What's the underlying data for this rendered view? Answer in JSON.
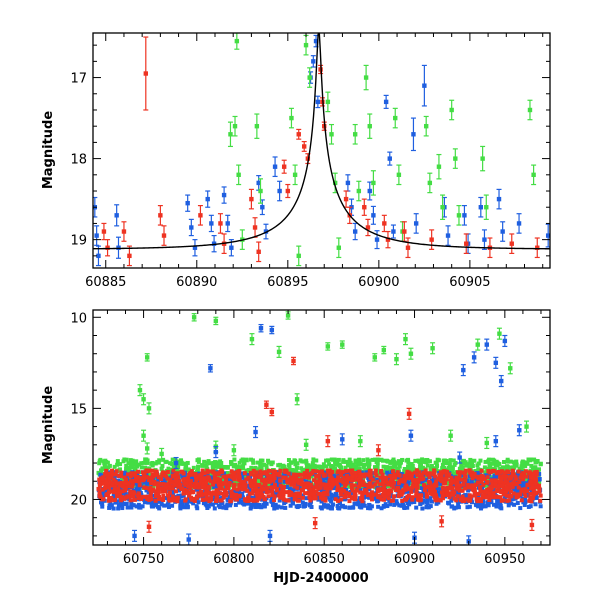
{
  "colors": {
    "blue": "#1f5fe0",
    "green": "#44dd44",
    "red": "#ee3322",
    "model": "#000000"
  },
  "chart_data": [
    {
      "type": "scatter",
      "panel": "zoom",
      "title": "",
      "xlabel": "",
      "ylabel": "Magnitude",
      "xlim": [
        60884.3,
        60909.4
      ],
      "ylim": [
        19.35,
        16.45
      ],
      "y_inverted": true,
      "x_ticks": [
        60885,
        60890,
        60895,
        60900,
        60905
      ],
      "x_tick_labels": [
        "60885",
        "60890",
        "60895",
        "60900",
        "60905"
      ],
      "y_ticks": [
        17,
        18,
        19
      ],
      "y_tick_labels": [
        "17",
        "18",
        "19"
      ],
      "model_curve": {
        "color": "#000000",
        "peak_x": 60896.7,
        "peak_mag": 16.4,
        "baseline_mag": 19.12,
        "u0": 0.02,
        "tE": 5.0
      },
      "series": [
        {
          "color_key": "blue",
          "points": [
            [
              60884.4,
              18.6,
              0.12
            ],
            [
              60884.5,
              18.95,
              0.12
            ],
            [
              60884.6,
              19.2,
              0.12
            ],
            [
              60885.6,
              18.7,
              0.13
            ],
            [
              60885.7,
              19.1,
              0.13
            ],
            [
              60889.5,
              18.55,
              0.1
            ],
            [
              60889.7,
              18.85,
              0.1
            ],
            [
              60889.9,
              19.1,
              0.1
            ],
            [
              60890.6,
              18.5,
              0.1
            ],
            [
              60890.8,
              18.8,
              0.1
            ],
            [
              60890.95,
              19.05,
              0.1
            ],
            [
              60891.5,
              18.45,
              0.1
            ],
            [
              60891.7,
              18.8,
              0.1
            ],
            [
              60891.9,
              19.1,
              0.1
            ],
            [
              60893.4,
              18.3,
              0.09
            ],
            [
              60893.6,
              18.6,
              0.09
            ],
            [
              60893.8,
              18.9,
              0.09
            ],
            [
              60894.3,
              18.1,
              0.12
            ],
            [
              60894.55,
              18.4,
              0.12
            ],
            [
              60896.25,
              17.0,
              0.07
            ],
            [
              60896.4,
              16.8,
              0.07
            ],
            [
              60896.55,
              16.55,
              0.07
            ],
            [
              60896.65,
              17.3,
              0.07
            ],
            [
              60898.3,
              18.3,
              0.1
            ],
            [
              60898.5,
              18.6,
              0.1
            ],
            [
              60898.7,
              18.9,
              0.1
            ],
            [
              60899.5,
              18.4,
              0.11
            ],
            [
              60899.7,
              18.7,
              0.11
            ],
            [
              60899.9,
              19.0,
              0.11
            ],
            [
              60900.4,
              17.3,
              0.08
            ],
            [
              60900.6,
              18.0,
              0.08
            ],
            [
              60900.8,
              18.9,
              0.08
            ],
            [
              60901.9,
              17.7,
              0.2
            ],
            [
              60902.05,
              18.8,
              0.12
            ],
            [
              60902.5,
              17.1,
              0.25
            ],
            [
              60903.6,
              18.6,
              0.12
            ],
            [
              60903.8,
              18.95,
              0.12
            ],
            [
              60904.7,
              18.7,
              0.12
            ],
            [
              60904.9,
              19.05,
              0.12
            ],
            [
              60905.6,
              18.6,
              0.12
            ],
            [
              60905.8,
              19.0,
              0.12
            ],
            [
              60906.6,
              18.5,
              0.12
            ],
            [
              60906.8,
              18.9,
              0.12
            ],
            [
              60907.7,
              18.8,
              0.12
            ],
            [
              60909.3,
              18.95,
              0.14
            ]
          ]
        },
        {
          "color_key": "green",
          "points": [
            [
              60891.85,
              17.7,
              0.15
            ],
            [
              60892.2,
              16.55,
              0.1
            ],
            [
              60892.1,
              17.6,
              0.12
            ],
            [
              60892.3,
              18.2,
              0.12
            ],
            [
              60892.5,
              19.0,
              0.12
            ],
            [
              60893.3,
              17.6,
              0.15
            ],
            [
              60893.5,
              18.4,
              0.15
            ],
            [
              60895.2,
              17.5,
              0.12
            ],
            [
              60895.4,
              18.2,
              0.12
            ],
            [
              60895.6,
              19.2,
              0.12
            ],
            [
              60896.0,
              16.6,
              0.12
            ],
            [
              60896.2,
              17.0,
              0.12
            ],
            [
              60897.2,
              17.3,
              0.12
            ],
            [
              60897.4,
              17.7,
              0.12
            ],
            [
              60897.6,
              18.3,
              0.12
            ],
            [
              60897.8,
              19.1,
              0.12
            ],
            [
              60898.7,
              17.7,
              0.12
            ],
            [
              60898.9,
              18.4,
              0.12
            ],
            [
              60899.3,
              17.0,
              0.15
            ],
            [
              60899.5,
              17.6,
              0.15
            ],
            [
              60899.7,
              18.3,
              0.15
            ],
            [
              60900.9,
              17.5,
              0.12
            ],
            [
              60901.1,
              18.2,
              0.12
            ],
            [
              60901.3,
              18.9,
              0.12
            ],
            [
              60902.6,
              17.6,
              0.12
            ],
            [
              60902.8,
              18.3,
              0.12
            ],
            [
              60903.3,
              18.1,
              0.15
            ],
            [
              60903.5,
              18.6,
              0.15
            ],
            [
              60904.0,
              17.4,
              0.12
            ],
            [
              60904.2,
              18.0,
              0.12
            ],
            [
              60904.4,
              18.7,
              0.12
            ],
            [
              60905.7,
              18.0,
              0.15
            ],
            [
              60905.9,
              18.6,
              0.15
            ],
            [
              60908.3,
              17.4,
              0.12
            ],
            [
              60908.5,
              18.2,
              0.12
            ]
          ]
        },
        {
          "color_key": "red",
          "points": [
            [
              60884.9,
              18.9,
              0.1
            ],
            [
              60885.1,
              19.1,
              0.1
            ],
            [
              60886.0,
              18.9,
              0.12
            ],
            [
              60886.3,
              19.2,
              0.12
            ],
            [
              60887.2,
              16.95,
              0.45
            ],
            [
              60888.0,
              18.7,
              0.12
            ],
            [
              60888.2,
              18.95,
              0.12
            ],
            [
              60890.2,
              18.7,
              0.12
            ],
            [
              60891.3,
              18.8,
              0.12
            ],
            [
              60891.5,
              19.05,
              0.12
            ],
            [
              60893.0,
              18.5,
              0.12
            ],
            [
              60893.2,
              18.85,
              0.12
            ],
            [
              60893.4,
              19.15,
              0.12
            ],
            [
              60894.8,
              18.1,
              0.08
            ],
            [
              60895.0,
              18.4,
              0.08
            ],
            [
              60895.6,
              17.7,
              0.06
            ],
            [
              60895.9,
              17.85,
              0.06
            ],
            [
              60896.1,
              18.0,
              0.06
            ],
            [
              60896.8,
              16.9,
              0.05
            ],
            [
              60896.9,
              17.3,
              0.05
            ],
            [
              60897.0,
              17.6,
              0.05
            ],
            [
              60898.2,
              18.5,
              0.1
            ],
            [
              60898.4,
              18.7,
              0.1
            ],
            [
              60899.2,
              18.6,
              0.1
            ],
            [
              60899.4,
              18.85,
              0.1
            ],
            [
              60900.3,
              18.8,
              0.1
            ],
            [
              60900.5,
              19.0,
              0.1
            ],
            [
              60901.4,
              18.9,
              0.12
            ],
            [
              60901.6,
              19.1,
              0.12
            ],
            [
              60902.9,
              19.0,
              0.12
            ],
            [
              60904.8,
              19.05,
              0.12
            ],
            [
              60906.1,
              19.1,
              0.12
            ],
            [
              60907.3,
              19.05,
              0.12
            ],
            [
              60908.7,
              19.1,
              0.12
            ]
          ]
        }
      ]
    },
    {
      "type": "scatter",
      "panel": "full",
      "title": "",
      "xlabel": "HJD-2400000",
      "ylabel": "Magnitude",
      "xlim": [
        60722,
        60975
      ],
      "ylim": [
        22.5,
        9.6
      ],
      "y_inverted": true,
      "x_ticks": [
        60750,
        60800,
        60850,
        60900,
        60950
      ],
      "x_tick_labels": [
        "60750",
        "60800",
        "60850",
        "60900",
        "60950"
      ],
      "y_ticks": [
        10,
        15,
        20
      ],
      "y_tick_labels": [
        "10",
        "15",
        "20"
      ],
      "baseline_band": {
        "xlim": [
          60725,
          60970
        ],
        "blue_mag": [
          18.5,
          20.5
        ],
        "green_mag": [
          17.8,
          19.4
        ],
        "red_mag": [
          18.4,
          20.1
        ]
      },
      "series": [
        {
          "color_key": "green",
          "points": [
            [
              60752,
              12.2,
              0.2
            ],
            [
              60748,
              14.0,
              0.3
            ],
            [
              60750,
              14.5,
              0.3
            ],
            [
              60753,
              15.0,
              0.3
            ],
            [
              60750,
              16.5,
              0.3
            ],
            [
              60752,
              17.2,
              0.3
            ],
            [
              60778,
              10.0,
              0.2
            ],
            [
              60790,
              10.2,
              0.2
            ],
            [
              60810,
              11.2,
              0.3
            ],
            [
              60825,
              11.9,
              0.3
            ],
            [
              60830,
              9.9,
              0.2
            ],
            [
              60835,
              14.5,
              0.3
            ],
            [
              60852,
              11.6,
              0.2
            ],
            [
              60860,
              11.5,
              0.2
            ],
            [
              60878,
              12.2,
              0.2
            ],
            [
              60883,
              11.8,
              0.2
            ],
            [
              60890,
              12.3,
              0.3
            ],
            [
              60895,
              11.2,
              0.3
            ],
            [
              60898,
              12.0,
              0.3
            ],
            [
              60910,
              11.7,
              0.3
            ],
            [
              60935,
              11.5,
              0.3
            ],
            [
              60947,
              10.9,
              0.3
            ],
            [
              60953,
              12.8,
              0.3
            ],
            [
              60962,
              16.0,
              0.3
            ],
            [
              60760,
              17.5,
              0.3
            ],
            [
              60790,
              17.1,
              0.3
            ],
            [
              60800,
              17.3,
              0.3
            ],
            [
              60840,
              17.0,
              0.3
            ],
            [
              60870,
              16.8,
              0.3
            ],
            [
              60920,
              16.5,
              0.3
            ],
            [
              60940,
              16.9,
              0.3
            ]
          ]
        },
        {
          "color_key": "blue",
          "points": [
            [
              60787,
              12.8,
              0.2
            ],
            [
              60815,
              10.6,
              0.2
            ],
            [
              60821,
              10.7,
              0.2
            ],
            [
              60927,
              12.9,
              0.3
            ],
            [
              60933,
              12.2,
              0.3
            ],
            [
              60940,
              11.5,
              0.3
            ],
            [
              60945,
              12.5,
              0.3
            ],
            [
              60948,
              13.5,
              0.3
            ],
            [
              60950,
              11.3,
              0.3
            ],
            [
              60958,
              16.2,
              0.3
            ],
            [
              60768,
              18.0,
              0.3
            ],
            [
              60790,
              17.4,
              0.3
            ],
            [
              60812,
              16.3,
              0.3
            ],
            [
              60860,
              16.7,
              0.3
            ],
            [
              60898,
              16.5,
              0.3
            ],
            [
              60925,
              17.7,
              0.3
            ],
            [
              60945,
              16.8,
              0.3
            ],
            [
              60745,
              22.0,
              0.3
            ],
            [
              60775,
              22.2,
              0.3
            ],
            [
              60820,
              22.0,
              0.3
            ],
            [
              60900,
              22.1,
              0.3
            ],
            [
              60930,
              22.3,
              0.3
            ]
          ]
        },
        {
          "color_key": "red",
          "points": [
            [
              60818,
              14.8,
              0.2
            ],
            [
              60821,
              15.2,
              0.2
            ],
            [
              60833,
              12.4,
              0.2
            ],
            [
              60897,
              15.3,
              0.3
            ],
            [
              60852,
              16.8,
              0.3
            ],
            [
              60880,
              17.3,
              0.3
            ],
            [
              60753,
              21.5,
              0.3
            ],
            [
              60845,
              21.3,
              0.3
            ],
            [
              60915,
              21.2,
              0.3
            ],
            [
              60965,
              21.4,
              0.3
            ]
          ]
        }
      ]
    }
  ]
}
